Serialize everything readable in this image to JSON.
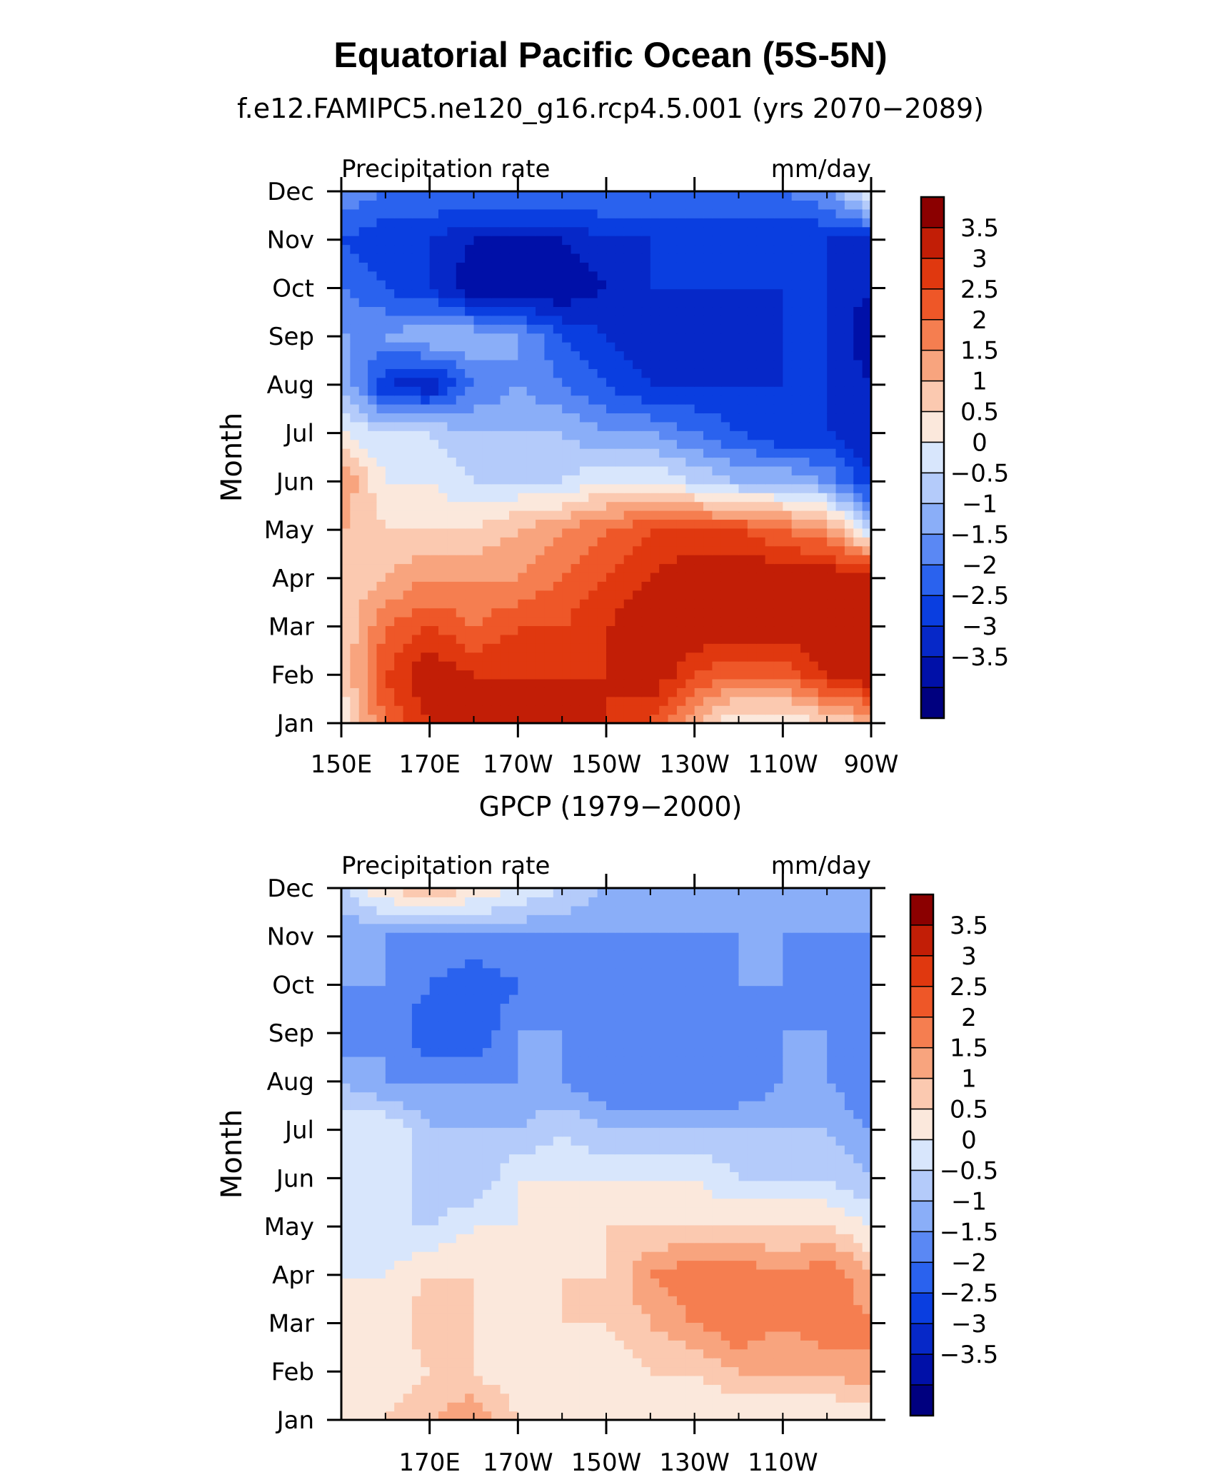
{
  "figure": {
    "title": "Equatorial Pacific Ocean (5S-5N)"
  },
  "chart_data": [
    {
      "type": "heatmap",
      "subtitle": "f.e12.FAMIPC5.ne120_g16.rcp4.5.001 (yrs 2070−2089)",
      "left_label": "Precipitation rate",
      "right_label": "mm/day",
      "ylabel": "Month",
      "xlabel": "",
      "x_tick_labels": [
        "150E",
        "170E",
        "170W",
        "150W",
        "130W",
        "110W",
        "90W"
      ],
      "x_tick_values": [
        150,
        170,
        190,
        210,
        230,
        250,
        270
      ],
      "xlim": [
        150,
        270
      ],
      "y_tick_labels": [
        "Jan",
        "Feb",
        "Mar",
        "Apr",
        "May",
        "Jun",
        "Jul",
        "Aug",
        "Sep",
        "Oct",
        "Nov",
        "Dec"
      ],
      "ylim": [
        "Jan",
        "Dec"
      ],
      "colorbar": {
        "levels": [
          -3.5,
          -3,
          -2.5,
          -2,
          -1.5,
          -1,
          -0.5,
          0,
          0.5,
          1,
          1.5,
          2,
          2.5,
          3,
          3.5
        ],
        "labels": [
          "3.5",
          "3",
          "2.5",
          "2",
          "1.5",
          "1",
          "0.5",
          "0",
          "−0.5",
          "−1",
          "−1.5",
          "−2",
          "−2.5",
          "−3",
          "−3.5"
        ],
        "colors": [
          "#00007f",
          "#0010a8",
          "#0628c8",
          "#0a3ee0",
          "#2a62ee",
          "#5a88f4",
          "#8aaef8",
          "#b4cbfa",
          "#d8e6fc",
          "#fbe8dc",
          "#fbc9b0",
          "#f8a47e",
          "#f57e50",
          "#ee5728",
          "#e0380f",
          "#c21e06",
          "#8b0000"
        ]
      },
      "x": [
        150,
        160,
        170,
        180,
        190,
        200,
        210,
        220,
        230,
        240,
        250,
        260,
        270
      ],
      "y_months": [
        "Jan",
        "Feb",
        "Mar",
        "Apr",
        "May",
        "Jun",
        "Jul",
        "Aug",
        "Sep",
        "Oct",
        "Nov",
        "Dec"
      ],
      "values": [
        [
          0.5,
          2.5,
          3.5,
          3.5,
          3.5,
          3.5,
          3.5,
          3.0,
          1.5,
          0.5,
          0.5,
          1.0,
          1.5
        ],
        [
          1.0,
          3.0,
          4.0,
          3.5,
          3.5,
          3.5,
          3.5,
          4.0,
          3.0,
          2.5,
          2.5,
          3.5,
          4.0
        ],
        [
          1.0,
          2.5,
          3.0,
          2.5,
          3.0,
          3.0,
          3.5,
          4.0,
          4.0,
          4.0,
          4.0,
          4.0,
          4.0
        ],
        [
          1.0,
          1.5,
          2.0,
          2.0,
          2.0,
          2.5,
          3.0,
          3.5,
          4.0,
          4.0,
          4.0,
          4.0,
          4.0
        ],
        [
          1.5,
          1.0,
          1.0,
          1.0,
          1.5,
          2.0,
          2.5,
          3.0,
          3.0,
          3.0,
          2.5,
          2.0,
          0.0
        ],
        [
          2.0,
          0.5,
          0.5,
          0.0,
          0.0,
          0.0,
          0.5,
          0.5,
          0.0,
          -0.5,
          -0.5,
          -1.0,
          -2.5
        ],
        [
          0.5,
          0.0,
          0.0,
          -0.5,
          -0.5,
          -0.5,
          -1.0,
          -1.0,
          -1.5,
          -2.0,
          -2.5,
          -2.5,
          -3.0
        ],
        [
          -0.5,
          -2.5,
          -3.0,
          -1.5,
          -1.0,
          -1.5,
          -2.0,
          -2.5,
          -2.5,
          -2.5,
          -2.5,
          -2.5,
          -3.0
        ],
        [
          -1.0,
          -1.0,
          -0.5,
          -0.5,
          -1.0,
          -2.0,
          -2.5,
          -3.0,
          -2.5,
          -3.0,
          -2.5,
          -2.5,
          -3.5
        ],
        [
          -1.5,
          -2.0,
          -2.5,
          -3.5,
          -3.5,
          -3.5,
          -3.0,
          -2.5,
          -2.5,
          -2.5,
          -2.5,
          -2.5,
          -3.0
        ],
        [
          -2.0,
          -2.5,
          -2.5,
          -3.0,
          -3.0,
          -3.0,
          -2.5,
          -2.5,
          -2.5,
          -2.5,
          -2.5,
          -2.5,
          -2.5
        ],
        [
          -1.0,
          -1.5,
          -1.5,
          -1.5,
          -1.5,
          -1.5,
          -1.5,
          -1.5,
          -1.5,
          -1.5,
          -1.5,
          -1.0,
          0.5
        ]
      ]
    },
    {
      "type": "heatmap",
      "subtitle": "GPCP (1979−2000)",
      "left_label": "Precipitation rate",
      "right_label": "mm/day",
      "ylabel": "Month",
      "xlabel": "",
      "x_tick_labels": [
        "170E",
        "170W",
        "150W",
        "130W",
        "110W"
      ],
      "x_tick_values": [
        170,
        190,
        210,
        230,
        250
      ],
      "xlim": [
        150,
        270
      ],
      "y_tick_labels": [
        "Jan",
        "Feb",
        "Mar",
        "Apr",
        "May",
        "Jun",
        "Jul",
        "Aug",
        "Sep",
        "Oct",
        "Nov",
        "Dec"
      ],
      "ylim": [
        "Jan",
        "Dec"
      ],
      "colorbar": {
        "levels": [
          -3.5,
          -3,
          -2.5,
          -2,
          -1.5,
          -1,
          -0.5,
          0,
          0.5,
          1,
          1.5,
          2,
          2.5,
          3,
          3.5
        ],
        "labels": [
          "3.5",
          "3",
          "2.5",
          "2",
          "1.5",
          "1",
          "0.5",
          "0",
          "−0.5",
          "−1",
          "−1.5",
          "−2",
          "−2.5",
          "−3",
          "−3.5"
        ],
        "colors": [
          "#00007f",
          "#0010a8",
          "#0628c8",
          "#0a3ee0",
          "#2a62ee",
          "#5a88f4",
          "#8aaef8",
          "#b4cbfa",
          "#d8e6fc",
          "#fbe8dc",
          "#fbc9b0",
          "#f8a47e",
          "#f57e50",
          "#ee5728",
          "#e0380f",
          "#c21e06",
          "#8b0000"
        ]
      },
      "x": [
        150,
        160,
        170,
        180,
        190,
        200,
        210,
        220,
        230,
        240,
        250,
        260,
        270
      ],
      "y_months": [
        "Jan",
        "Feb",
        "Mar",
        "Apr",
        "May",
        "Jun",
        "Jul",
        "Aug",
        "Sep",
        "Oct",
        "Nov",
        "Dec"
      ],
      "values": [
        [
          0.5,
          1.0,
          1.5,
          2.0,
          1.0,
          0.5,
          0.5,
          0.5,
          0.5,
          0.5,
          0.5,
          0.5,
          0.5
        ],
        [
          1.0,
          0.5,
          1.0,
          1.0,
          0.5,
          0.5,
          0.5,
          1.0,
          1.0,
          1.5,
          1.5,
          1.5,
          2.0
        ],
        [
          1.0,
          0.5,
          1.5,
          1.0,
          0.5,
          1.0,
          1.0,
          1.5,
          2.0,
          2.5,
          2.0,
          2.5,
          2.0
        ],
        [
          0.5,
          0.5,
          1.0,
          1.0,
          1.0,
          1.0,
          1.0,
          2.0,
          2.5,
          2.5,
          2.0,
          2.5,
          1.5
        ],
        [
          0.0,
          0.0,
          0.0,
          0.5,
          0.5,
          0.5,
          1.0,
          1.0,
          1.0,
          1.0,
          1.0,
          1.0,
          0.5
        ],
        [
          0.0,
          0.5,
          -0.5,
          -0.5,
          0.5,
          0.5,
          0.5,
          0.5,
          0.5,
          0.0,
          0.0,
          0.0,
          -0.5
        ],
        [
          0.5,
          0.5,
          -0.5,
          -0.5,
          -0.5,
          0.0,
          -0.5,
          -0.5,
          -0.5,
          -0.5,
          -0.5,
          -0.5,
          -1.0
        ],
        [
          -0.5,
          -1.0,
          -1.0,
          -1.0,
          -1.0,
          -1.0,
          -1.5,
          -1.5,
          -1.5,
          -1.5,
          -1.0,
          -1.0,
          -1.5
        ],
        [
          -1.5,
          -1.0,
          -2.0,
          -2.0,
          -1.0,
          -1.0,
          -1.5,
          -1.5,
          -1.5,
          -1.5,
          -1.0,
          -1.0,
          -1.5
        ],
        [
          -1.0,
          -1.0,
          -1.5,
          -2.0,
          -1.5,
          -1.0,
          -1.5,
          -1.5,
          -1.5,
          -1.0,
          -1.0,
          -1.5,
          -1.5
        ],
        [
          -1.0,
          -1.0,
          -1.0,
          -1.0,
          -1.0,
          -1.0,
          -1.0,
          -1.0,
          -1.0,
          -1.0,
          -1.0,
          -1.0,
          -1.0
        ],
        [
          0.0,
          1.0,
          1.5,
          1.0,
          0.5,
          0.0,
          -0.5,
          -0.5,
          -0.5,
          -1.0,
          -1.0,
          -1.0,
          -1.0
        ]
      ]
    }
  ]
}
